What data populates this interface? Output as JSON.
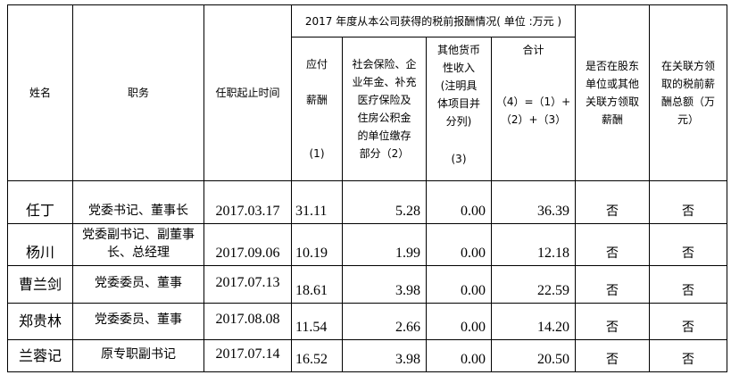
{
  "header": {
    "name": "姓名",
    "position": "职务",
    "term": "任职起止时间",
    "group_title": "2017 年度从本公司获得的税前报酬情况( 单位 :万元 )",
    "col1_a": "应付",
    "col1_b": "薪酬",
    "col1_c": "(1)",
    "col2_lines": [
      "社会保险、企",
      "业年金、补充",
      "医疗保险及",
      "住房公积金",
      "的单位缴存",
      "部分（2）"
    ],
    "col3_lines": [
      "其他货币",
      "性收入",
      "(注明具",
      "体项目并",
      "分列)"
    ],
    "col3_c": "(3)",
    "col4_a": "合计",
    "col4_b": "（4）=（1）+",
    "col4_c": "（2）+（3）",
    "shareholder_lines": [
      "是否在股东",
      "单位或其他",
      "关联方领取",
      "薪酬"
    ],
    "related_lines": [
      "在关联方领",
      "取的税前薪",
      "酬总额（万",
      "元）"
    ]
  },
  "rows": [
    {
      "name": "任丁",
      "position": "党委书记、董事长",
      "date": "2017.03.17",
      "pay": "31.11",
      "insurance": "5.28",
      "other": "0.00",
      "total": "36.39",
      "shareholder": "否",
      "related": "否"
    },
    {
      "name": "杨川",
      "position": "党委副书记、副董事长、总经理",
      "date": "2017.09.06",
      "pay": "10.19",
      "insurance": "1.99",
      "other": "0.00",
      "total": "12.18",
      "shareholder": "否",
      "related": "否"
    },
    {
      "name": "曹兰剑",
      "position": "党委委员、董事",
      "date": "2017.07.13",
      "pay": "18.61",
      "insurance": "3.98",
      "other": "0.00",
      "total": "22.59",
      "shareholder": "否",
      "related": "否"
    },
    {
      "name": "郑贵林",
      "position": "党委委员、董事",
      "date": "2017.08.08",
      "pay": "11.54",
      "insurance": "2.66",
      "other": "0.00",
      "total": "14.20",
      "shareholder": "否",
      "related": "否"
    },
    {
      "name": "兰蓉记",
      "position": "原专职副书记",
      "date": "2017.07.14",
      "pay": "16.52",
      "insurance": "3.98",
      "other": "0.00",
      "total": "20.50",
      "shareholder": "否",
      "related": "否"
    }
  ]
}
